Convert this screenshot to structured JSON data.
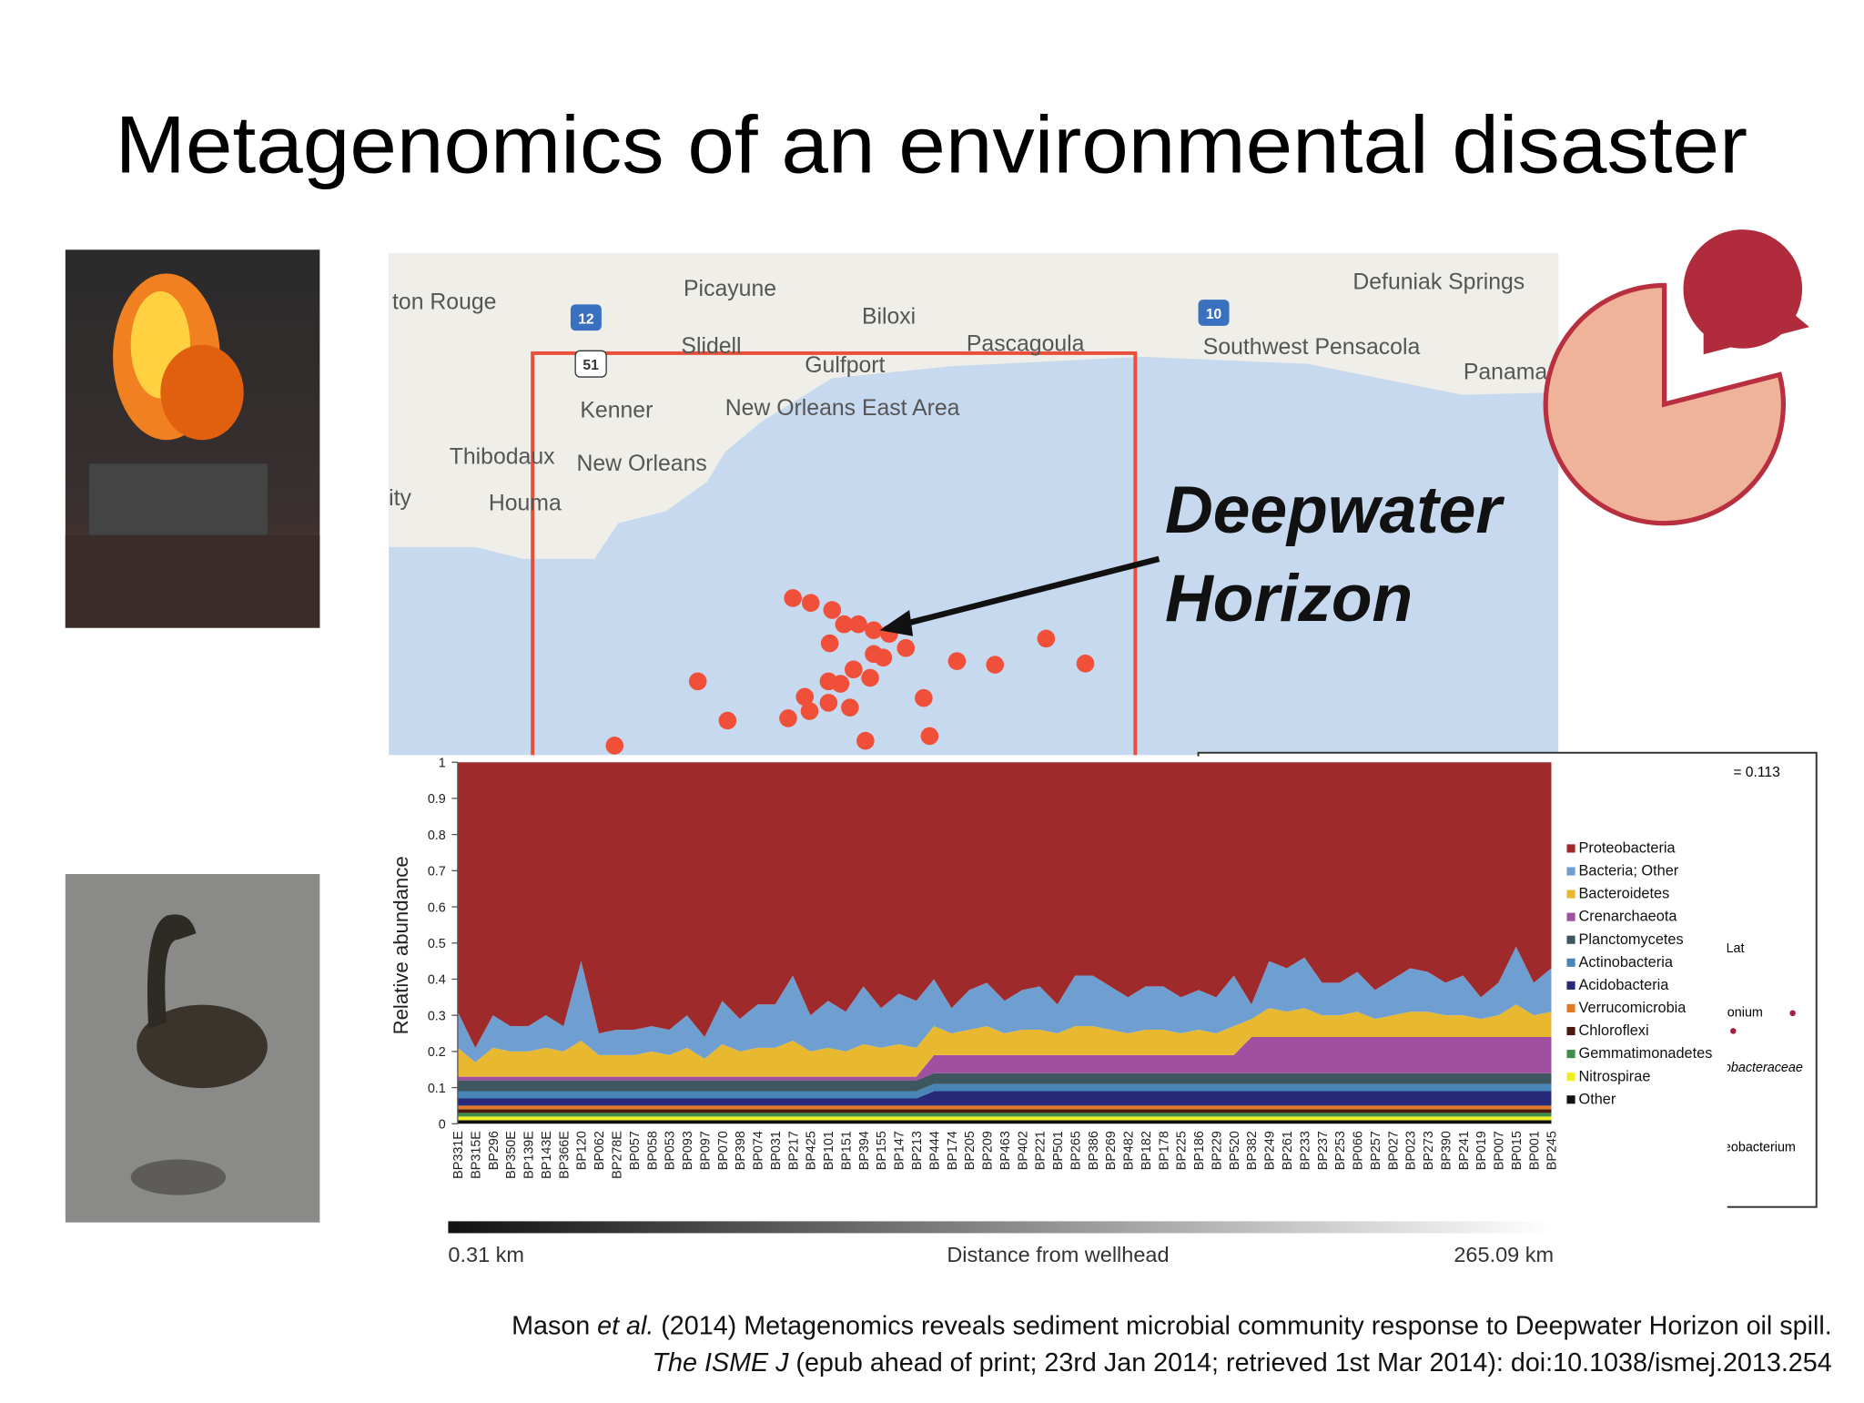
{
  "title": "Metagenomics of an environmental disaster",
  "map": {
    "labels": [
      "ton Rouge",
      "Picayune",
      "Biloxi",
      "Slidell",
      "Gulfport",
      "Pascagoula",
      "Defuniak Springs",
      "Southwest Pensacola",
      "Panama",
      "Kenner",
      "New Orleans East Area",
      "New Orleans",
      "Thibodaux",
      "Houma",
      "ity"
    ],
    "shields": [
      "12",
      "51",
      "10"
    ],
    "annotation": [
      "Deepwater",
      "Horizon"
    ]
  },
  "side_panel": {
    "stat": "= 0.113",
    "labels": [
      "Lat",
      "onium",
      "obacteraceae",
      "eobacterium"
    ]
  },
  "citation": {
    "line1": [
      "Mason",
      "et al.",
      "(2014) Metagenomics reveals sediment microbial community response to Deepwater Horizon oil spill."
    ],
    "line2": [
      "The ISME J",
      "(epub ahead of print; 23rd Jan 2014; retrieved 1st Mar 2014): doi:10.1038/ismej.2013.254"
    ]
  },
  "chart_data": {
    "type": "stacked_area",
    "ylabel": "Relative abundance",
    "x_axis": {
      "start_label": "0.31 km",
      "label": "Distance from wellhead",
      "end_label": "265.09 km"
    },
    "ylim": [
      0,
      1
    ],
    "yticks": [
      0,
      0.1,
      0.2,
      0.3,
      0.4,
      0.5,
      0.6,
      0.7,
      0.8,
      0.9,
      1
    ],
    "categories": [
      "BP331E",
      "BP315E",
      "BP296",
      "BP350E",
      "BP139E",
      "BP143E",
      "BP366E",
      "BP120",
      "BP062",
      "BP278E",
      "BP057",
      "BP058",
      "BP053",
      "BP093",
      "BP097",
      "BP070",
      "BP398",
      "BP074",
      "BP031",
      "BP217",
      "BP425",
      "BP101",
      "BP151",
      "BP394",
      "BP155",
      "BP147",
      "BP213",
      "BP444",
      "BP174",
      "BP205",
      "BP209",
      "BP463",
      "BP402",
      "BP221",
      "BP501",
      "BP265",
      "BP386",
      "BP269",
      "BP482",
      "BP182",
      "BP178",
      "BP225",
      "BP186",
      "BP229",
      "BP520",
      "BP382",
      "BP249",
      "BP261",
      "BP233",
      "BP237",
      "BP253",
      "BP066",
      "BP257",
      "BP027",
      "BP023",
      "BP273",
      "BP390",
      "BP241",
      "BP019",
      "BP007",
      "BP015",
      "BP001",
      "BP245"
    ],
    "series": [
      {
        "name": "Proteobacteria",
        "color": "#9e2a2b",
        "values": [
          0.69,
          0.79,
          0.7,
          0.73,
          0.73,
          0.7,
          0.73,
          0.55,
          0.75,
          0.74,
          0.74,
          0.73,
          0.74,
          0.7,
          0.76,
          0.66,
          0.71,
          0.67,
          0.67,
          0.59,
          0.7,
          0.66,
          0.69,
          0.62,
          0.68,
          0.64,
          0.66,
          0.6,
          0.68,
          0.63,
          0.61,
          0.66,
          0.63,
          0.62,
          0.67,
          0.59,
          0.59,
          0.62,
          0.65,
          0.62,
          0.62,
          0.65,
          0.63,
          0.65,
          0.59,
          0.67,
          0.55,
          0.57,
          0.54,
          0.61,
          0.61,
          0.58,
          0.63,
          0.6,
          0.57,
          0.58,
          0.61,
          0.59,
          0.65,
          0.61,
          0.51,
          0.61,
          0.57
        ]
      },
      {
        "name": "Bacteria; Other",
        "color": "#6f9fd0",
        "values": [
          0.1,
          0.04,
          0.09,
          0.07,
          0.07,
          0.09,
          0.07,
          0.22,
          0.06,
          0.07,
          0.07,
          0.07,
          0.07,
          0.09,
          0.06,
          0.12,
          0.09,
          0.12,
          0.12,
          0.18,
          0.1,
          0.13,
          0.11,
          0.16,
          0.11,
          0.14,
          0.13,
          0.13,
          0.07,
          0.11,
          0.12,
          0.09,
          0.11,
          0.12,
          0.08,
          0.14,
          0.14,
          0.12,
          0.1,
          0.12,
          0.12,
          0.1,
          0.11,
          0.1,
          0.14,
          0.04,
          0.13,
          0.12,
          0.14,
          0.09,
          0.09,
          0.11,
          0.08,
          0.1,
          0.12,
          0.11,
          0.09,
          0.11,
          0.06,
          0.09,
          0.16,
          0.09,
          0.12
        ]
      },
      {
        "name": "Bacteroidetes",
        "color": "#e8b930",
        "values": [
          0.08,
          0.04,
          0.08,
          0.07,
          0.07,
          0.08,
          0.07,
          0.1,
          0.06,
          0.06,
          0.06,
          0.07,
          0.06,
          0.08,
          0.05,
          0.09,
          0.07,
          0.08,
          0.08,
          0.1,
          0.07,
          0.08,
          0.07,
          0.09,
          0.08,
          0.09,
          0.08,
          0.08,
          0.06,
          0.07,
          0.08,
          0.06,
          0.07,
          0.07,
          0.06,
          0.08,
          0.08,
          0.07,
          0.06,
          0.07,
          0.07,
          0.06,
          0.07,
          0.06,
          0.08,
          0.05,
          0.08,
          0.07,
          0.08,
          0.06,
          0.06,
          0.07,
          0.05,
          0.06,
          0.07,
          0.07,
          0.06,
          0.06,
          0.05,
          0.06,
          0.09,
          0.06,
          0.07
        ]
      },
      {
        "name": "Crenarchaeota",
        "color": "#a050a0",
        "values": [
          0.01,
          0.01,
          0.01,
          0.01,
          0.01,
          0.01,
          0.01,
          0.01,
          0.01,
          0.01,
          0.01,
          0.01,
          0.01,
          0.01,
          0.01,
          0.01,
          0.01,
          0.01,
          0.01,
          0.01,
          0.01,
          0.01,
          0.01,
          0.01,
          0.01,
          0.01,
          0.01,
          0.05,
          0.05,
          0.05,
          0.05,
          0.05,
          0.05,
          0.05,
          0.05,
          0.05,
          0.05,
          0.05,
          0.05,
          0.05,
          0.05,
          0.05,
          0.05,
          0.05,
          0.05,
          0.1,
          0.1,
          0.1,
          0.1,
          0.1,
          0.1,
          0.1,
          0.1,
          0.1,
          0.1,
          0.1,
          0.1,
          0.1,
          0.1,
          0.1,
          0.1,
          0.1,
          0.1
        ]
      },
      {
        "name": "Planctomycetes",
        "color": "#3e5660",
        "values": [
          0.03,
          0.03,
          0.03,
          0.03,
          0.03,
          0.03,
          0.03,
          0.03,
          0.03,
          0.03,
          0.03,
          0.03,
          0.03,
          0.03,
          0.03,
          0.03,
          0.03,
          0.03,
          0.03,
          0.03,
          0.03,
          0.03,
          0.03,
          0.03,
          0.03,
          0.03,
          0.03,
          0.03,
          0.03,
          0.03,
          0.03,
          0.03,
          0.03,
          0.03,
          0.03,
          0.03,
          0.03,
          0.03,
          0.03,
          0.03,
          0.03,
          0.03,
          0.03,
          0.03,
          0.03,
          0.03,
          0.03,
          0.03,
          0.03,
          0.03,
          0.03,
          0.03,
          0.03,
          0.03,
          0.03,
          0.03,
          0.03,
          0.03,
          0.03,
          0.03,
          0.03,
          0.03,
          0.03
        ]
      },
      {
        "name": "Actinobacteria",
        "color": "#4a85b8",
        "values": [
          0.02,
          0.02,
          0.02,
          0.02,
          0.02,
          0.02,
          0.02,
          0.02,
          0.02,
          0.02,
          0.02,
          0.02,
          0.02,
          0.02,
          0.02,
          0.02,
          0.02,
          0.02,
          0.02,
          0.02,
          0.02,
          0.02,
          0.02,
          0.02,
          0.02,
          0.02,
          0.02,
          0.02,
          0.02,
          0.02,
          0.02,
          0.02,
          0.02,
          0.02,
          0.02,
          0.02,
          0.02,
          0.02,
          0.02,
          0.02,
          0.02,
          0.02,
          0.02,
          0.02,
          0.02,
          0.02,
          0.02,
          0.02,
          0.02,
          0.02,
          0.02,
          0.02,
          0.02,
          0.02,
          0.02,
          0.02,
          0.02,
          0.02,
          0.02,
          0.02,
          0.02,
          0.02,
          0.02
        ]
      },
      {
        "name": "Acidobacteria",
        "color": "#262a78",
        "values": [
          0.02,
          0.02,
          0.02,
          0.02,
          0.02,
          0.02,
          0.02,
          0.02,
          0.02,
          0.02,
          0.02,
          0.02,
          0.02,
          0.02,
          0.02,
          0.02,
          0.02,
          0.02,
          0.02,
          0.02,
          0.02,
          0.02,
          0.02,
          0.02,
          0.02,
          0.02,
          0.02,
          0.04,
          0.04,
          0.04,
          0.04,
          0.04,
          0.04,
          0.04,
          0.04,
          0.04,
          0.04,
          0.04,
          0.04,
          0.04,
          0.04,
          0.04,
          0.04,
          0.04,
          0.04,
          0.04,
          0.04,
          0.04,
          0.04,
          0.04,
          0.04,
          0.04,
          0.04,
          0.04,
          0.04,
          0.04,
          0.04,
          0.04,
          0.04,
          0.04,
          0.04,
          0.04,
          0.04
        ]
      },
      {
        "name": "Verrucomicrobia",
        "color": "#e07828",
        "values": [
          0.01,
          0.01,
          0.01,
          0.01,
          0.01,
          0.01,
          0.01,
          0.01,
          0.01,
          0.01,
          0.01,
          0.01,
          0.01,
          0.01,
          0.01,
          0.01,
          0.01,
          0.01,
          0.01,
          0.01,
          0.01,
          0.01,
          0.01,
          0.01,
          0.01,
          0.01,
          0.01,
          0.01,
          0.01,
          0.01,
          0.01,
          0.01,
          0.01,
          0.01,
          0.01,
          0.01,
          0.01,
          0.01,
          0.01,
          0.01,
          0.01,
          0.01,
          0.01,
          0.01,
          0.01,
          0.01,
          0.01,
          0.01,
          0.01,
          0.01,
          0.01,
          0.01,
          0.01,
          0.01,
          0.01,
          0.01,
          0.01,
          0.01,
          0.01,
          0.01,
          0.01,
          0.01,
          0.01
        ]
      },
      {
        "name": "Chloroflexi",
        "color": "#4a1a10",
        "values": [
          0.01,
          0.01,
          0.01,
          0.01,
          0.01,
          0.01,
          0.01,
          0.01,
          0.01,
          0.01,
          0.01,
          0.01,
          0.01,
          0.01,
          0.01,
          0.01,
          0.01,
          0.01,
          0.01,
          0.01,
          0.01,
          0.01,
          0.01,
          0.01,
          0.01,
          0.01,
          0.01,
          0.01,
          0.01,
          0.01,
          0.01,
          0.01,
          0.01,
          0.01,
          0.01,
          0.01,
          0.01,
          0.01,
          0.01,
          0.01,
          0.01,
          0.01,
          0.01,
          0.01,
          0.01,
          0.01,
          0.01,
          0.01,
          0.01,
          0.01,
          0.01,
          0.01,
          0.01,
          0.01,
          0.01,
          0.01,
          0.01,
          0.01,
          0.01,
          0.01,
          0.01,
          0.01,
          0.01
        ]
      },
      {
        "name": "Gemmatimonadetes",
        "color": "#3f8f4a",
        "values": [
          0.01,
          0.01,
          0.01,
          0.01,
          0.01,
          0.01,
          0.01,
          0.01,
          0.01,
          0.01,
          0.01,
          0.01,
          0.01,
          0.01,
          0.01,
          0.01,
          0.01,
          0.01,
          0.01,
          0.01,
          0.01,
          0.01,
          0.01,
          0.01,
          0.01,
          0.01,
          0.01,
          0.01,
          0.01,
          0.01,
          0.01,
          0.01,
          0.01,
          0.01,
          0.01,
          0.01,
          0.01,
          0.01,
          0.01,
          0.01,
          0.01,
          0.01,
          0.01,
          0.01,
          0.01,
          0.01,
          0.01,
          0.01,
          0.01,
          0.01,
          0.01,
          0.01,
          0.01,
          0.01,
          0.01,
          0.01,
          0.01,
          0.01,
          0.01,
          0.01,
          0.01,
          0.01,
          0.01
        ]
      },
      {
        "name": "Nitrospirae",
        "color": "#f0f020",
        "values": [
          0.01,
          0.01,
          0.01,
          0.01,
          0.01,
          0.01,
          0.01,
          0.01,
          0.01,
          0.01,
          0.01,
          0.01,
          0.01,
          0.01,
          0.01,
          0.01,
          0.01,
          0.01,
          0.01,
          0.01,
          0.01,
          0.01,
          0.01,
          0.01,
          0.01,
          0.01,
          0.01,
          0.01,
          0.01,
          0.01,
          0.01,
          0.01,
          0.01,
          0.01,
          0.01,
          0.01,
          0.01,
          0.01,
          0.01,
          0.01,
          0.01,
          0.01,
          0.01,
          0.01,
          0.01,
          0.01,
          0.01,
          0.01,
          0.01,
          0.01,
          0.01,
          0.01,
          0.01,
          0.01,
          0.01,
          0.01,
          0.01,
          0.01,
          0.01,
          0.01,
          0.01,
          0.01,
          0.01
        ]
      },
      {
        "name": "Other",
        "color": "#111111",
        "values": [
          0.01,
          0.01,
          0.01,
          0.01,
          0.01,
          0.01,
          0.01,
          0.01,
          0.01,
          0.01,
          0.01,
          0.01,
          0.01,
          0.01,
          0.01,
          0.01,
          0.01,
          0.01,
          0.01,
          0.01,
          0.01,
          0.01,
          0.01,
          0.01,
          0.01,
          0.01,
          0.01,
          0.01,
          0.01,
          0.01,
          0.01,
          0.01,
          0.01,
          0.01,
          0.01,
          0.01,
          0.01,
          0.01,
          0.01,
          0.01,
          0.01,
          0.01,
          0.01,
          0.01,
          0.01,
          0.01,
          0.01,
          0.01,
          0.01,
          0.01,
          0.01,
          0.01,
          0.01,
          0.01,
          0.01,
          0.01,
          0.01,
          0.01,
          0.01,
          0.01,
          0.01,
          0.01,
          0.01
        ]
      }
    ]
  }
}
